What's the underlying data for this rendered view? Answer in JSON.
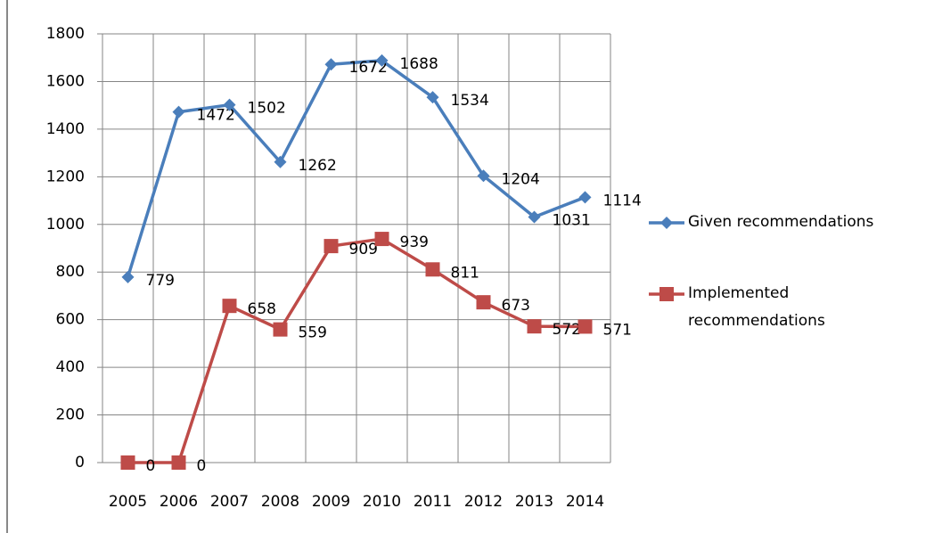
{
  "chart_data": {
    "type": "line",
    "categories": [
      "2005",
      "2006",
      "2007",
      "2008",
      "2009",
      "2010",
      "2011",
      "2012",
      "2013",
      "2014"
    ],
    "series": [
      {
        "name": "Given recommendations",
        "color": "#4a7ebb",
        "marker": "diamond",
        "values": [
          779,
          1472,
          1502,
          1262,
          1672,
          1688,
          1534,
          1204,
          1031,
          1114
        ]
      },
      {
        "name": "Implemented recommendations",
        "color": "#be4b48",
        "marker": "square",
        "values": [
          0,
          0,
          658,
          559,
          909,
          939,
          811,
          673,
          572,
          571
        ]
      }
    ],
    "ylim": [
      0,
      1800
    ],
    "yticks": [
      0,
      200,
      400,
      600,
      800,
      1000,
      1200,
      1400,
      1600,
      1800
    ],
    "grid": true,
    "legend": "right"
  }
}
